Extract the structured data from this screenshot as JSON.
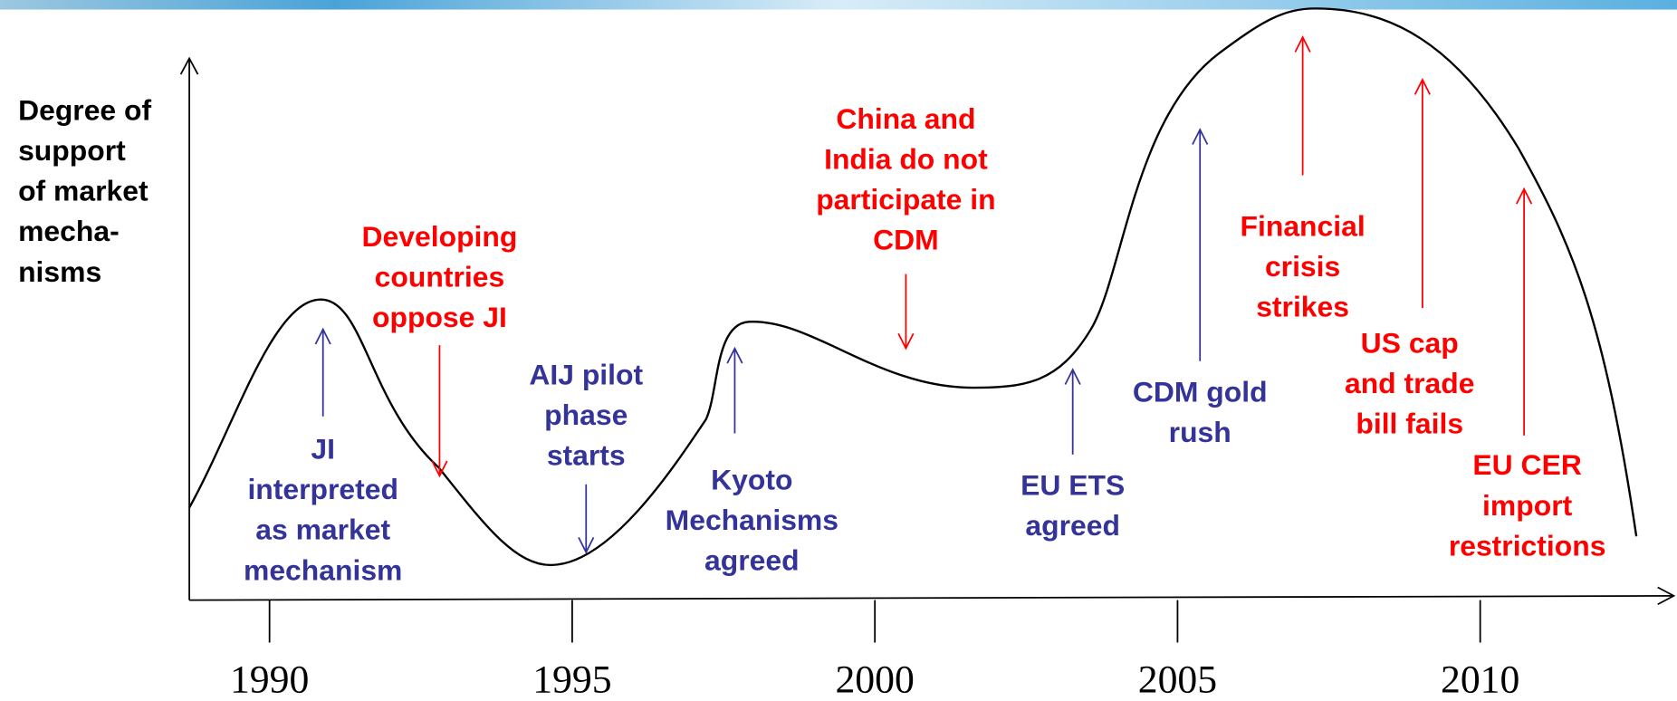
{
  "y_axis_label": [
    "Degree of",
    "support",
    "of market",
    "mecha-",
    "nisms"
  ],
  "x_ticks": [
    1990,
    1995,
    2000,
    2005,
    2010
  ],
  "annotations": [
    {
      "lines": [
        "JI",
        "interpreted",
        "as market",
        "mechanism"
      ],
      "color": "#333399"
    },
    {
      "lines": [
        "Developing",
        "countries",
        "oppose JI"
      ],
      "color": "#ff0000"
    },
    {
      "lines": [
        "AIJ pilot",
        "phase",
        "starts"
      ],
      "color": "#333399"
    },
    {
      "lines": [
        "Kyoto",
        "Mechanisms",
        "agreed"
      ],
      "color": "#333399"
    },
    {
      "lines": [
        "China and",
        "India do not",
        "participate in",
        "CDM"
      ],
      "color": "#ff0000"
    },
    {
      "lines": [
        "EU ETS",
        "agreed"
      ],
      "color": "#333399"
    },
    {
      "lines": [
        "CDM gold",
        "rush"
      ],
      "color": "#333399"
    },
    {
      "lines": [
        "Financial",
        "crisis",
        "strikes"
      ],
      "color": "#ff0000"
    },
    {
      "lines": [
        "US cap",
        "and trade",
        "bill fails"
      ],
      "color": "#ff0000"
    },
    {
      "lines": [
        "EU CER",
        "import",
        "restrictions"
      ],
      "color": "#ff0000"
    }
  ]
}
